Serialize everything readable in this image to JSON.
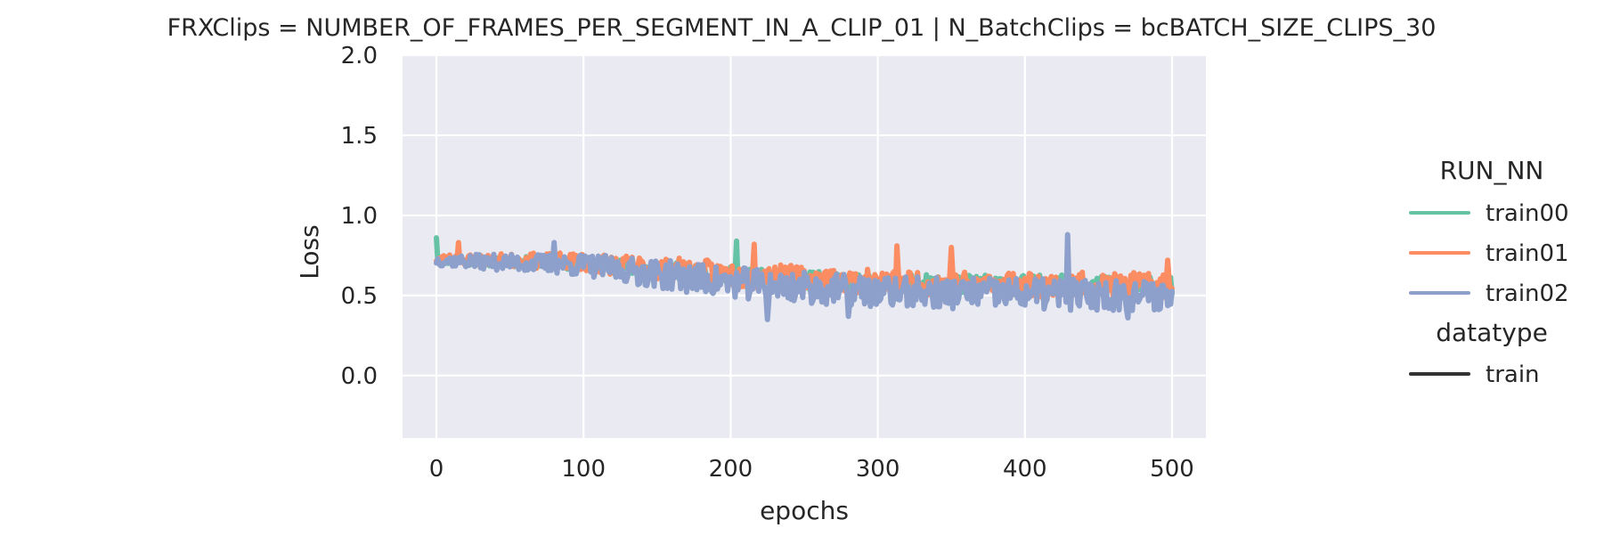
{
  "chart_data": {
    "type": "line",
    "title": "FRXClips = NUMBER_OF_FRAMES_PER_SEGMENT_IN_A_CLIP_01 | N_BatchClips = bcBATCH_SIZE_CLIPS_30",
    "xlabel": "epochs",
    "ylabel": "Loss",
    "xlim": [
      -23,
      523
    ],
    "ylim": [
      -0.39,
      2.0
    ],
    "x_ticks": [
      0,
      100,
      200,
      300,
      400,
      500
    ],
    "y_ticks": [
      0.0,
      0.5,
      1.0,
      1.5,
      2.0
    ],
    "x_tick_labels": [
      "0",
      "100",
      "200",
      "300",
      "400",
      "500"
    ],
    "y_tick_labels": [
      "0.0",
      "0.5",
      "1.0",
      "1.5",
      "2.0"
    ],
    "grid": true,
    "background": "#EAEAF2",
    "legend": {
      "placement": "right",
      "hue_title": "RUN_NN",
      "style_title": "datatype",
      "style_entries": [
        {
          "label": "train",
          "color": "#333333"
        }
      ]
    },
    "series": [
      {
        "name": "train00",
        "color": "#66C2A5",
        "x_start": 0,
        "x_end": 500,
        "trend": [
          [
            0,
            0.72
          ],
          [
            100,
            0.7
          ],
          [
            200,
            0.62
          ],
          [
            300,
            0.57
          ],
          [
            400,
            0.57
          ],
          [
            500,
            0.56
          ]
        ],
        "noise_amp": 0.06,
        "seed": 11,
        "peaks": [
          [
            0,
            0.86
          ],
          [
            204,
            0.84
          ]
        ],
        "troughs": []
      },
      {
        "name": "train01",
        "color": "#FC8D62",
        "x_start": 0,
        "x_end": 500,
        "trend": [
          [
            0,
            0.73
          ],
          [
            100,
            0.71
          ],
          [
            200,
            0.63
          ],
          [
            300,
            0.58
          ],
          [
            400,
            0.57
          ],
          [
            500,
            0.56
          ]
        ],
        "noise_amp": 0.08,
        "seed": 23,
        "peaks": [
          [
            15,
            0.83
          ],
          [
            216,
            0.82
          ],
          [
            313,
            0.81
          ],
          [
            350,
            0.8
          ],
          [
            497,
            0.72
          ]
        ],
        "troughs": []
      },
      {
        "name": "train02",
        "color": "#8DA0CB",
        "x_start": 0,
        "x_end": 500,
        "trend": [
          [
            0,
            0.72
          ],
          [
            100,
            0.69
          ],
          [
            200,
            0.58
          ],
          [
            300,
            0.52
          ],
          [
            400,
            0.51
          ],
          [
            500,
            0.5
          ]
        ],
        "noise_amp": 0.1,
        "seed": 37,
        "peaks": [
          [
            80,
            0.83
          ],
          [
            429,
            0.88
          ]
        ],
        "troughs": [
          [
            225,
            0.35
          ],
          [
            280,
            0.37
          ],
          [
            470,
            0.36
          ]
        ]
      }
    ]
  }
}
